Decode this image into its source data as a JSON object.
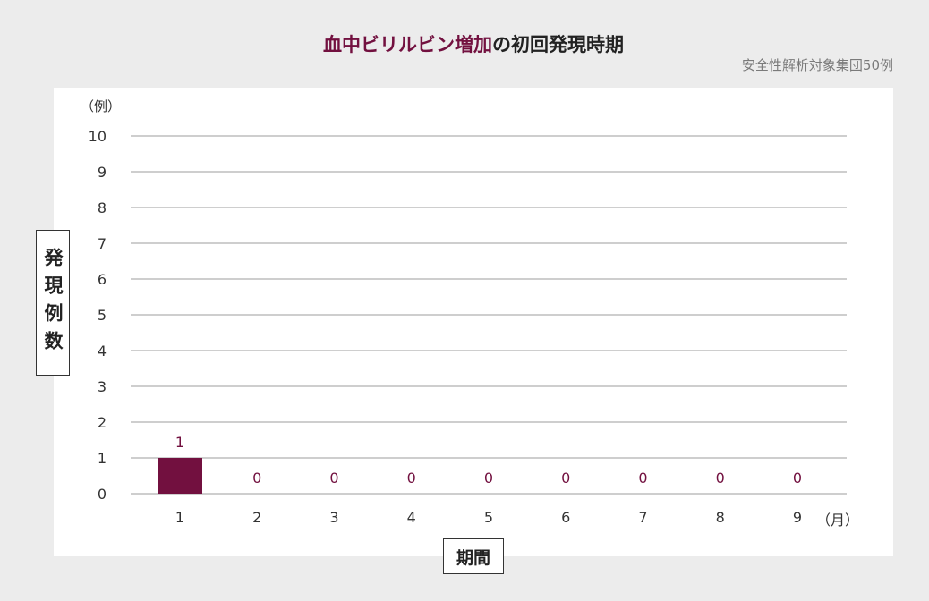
{
  "title": {
    "accent": "血中ビリルビン増加",
    "rest": "の初回発現時期"
  },
  "subtitle": "安全性解析対象集団50例",
  "colors": {
    "bar": "#72103f",
    "value_label": "#72103f",
    "grid": "#bdbdbd",
    "background": "#ececec",
    "panel": "#ffffff"
  },
  "chart_data": {
    "type": "bar",
    "title": "血中ビリルビン増加の初回発現時期",
    "subtitle": "安全性解析対象集団50例",
    "xlabel": "期間",
    "x_unit": "（月）",
    "ylabel": "発現例数",
    "y_unit": "（例）",
    "categories": [
      "1",
      "2",
      "3",
      "4",
      "5",
      "6",
      "7",
      "8",
      "9"
    ],
    "values": [
      1,
      0,
      0,
      0,
      0,
      0,
      0,
      0,
      0
    ],
    "y_ticks": [
      "0",
      "1",
      "2",
      "3",
      "4",
      "5",
      "6",
      "7",
      "8",
      "9",
      "10"
    ],
    "ylim": [
      0,
      10
    ],
    "grid": true,
    "legend": "none"
  }
}
